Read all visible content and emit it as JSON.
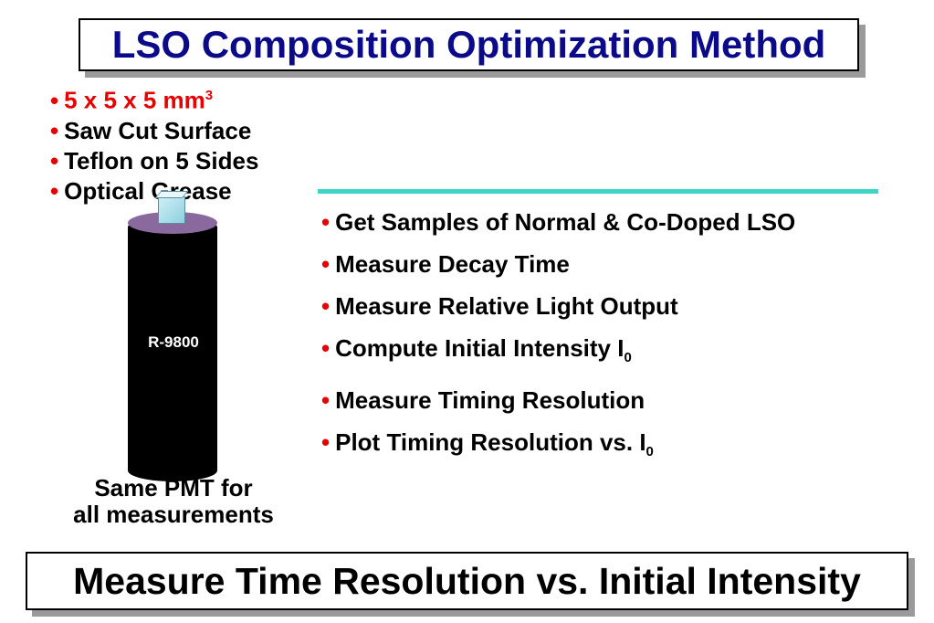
{
  "title": "LSO Composition Optimization Method",
  "specs": [
    {
      "text": "5 x 5 x 5 mm",
      "sup": "3"
    },
    {
      "text": "Saw Cut Surface"
    },
    {
      "text": "Teflon on 5 Sides"
    },
    {
      "text": "Optical Grease"
    }
  ],
  "bullet": "•",
  "pmt_label": "R-9800",
  "caption": {
    "line1": "Same PMT for",
    "line2": "all measurements"
  },
  "steps": [
    {
      "text": "Get Samples of Normal & Co-Doped LSO"
    },
    {
      "text": "Measure Decay Time"
    },
    {
      "text": "Measure Relative Light Output"
    },
    {
      "text": "Compute Initial Intensity I",
      "sub": "0"
    },
    {
      "text": "Measure Timing Resolution"
    },
    {
      "text": "Plot Timing Resolution vs. I",
      "sub": "0"
    }
  ],
  "bottom_banner": "Measure Time Resolution vs. Initial Intensity",
  "colors": {
    "title": "#0b0b8a",
    "accent_red": "#e60000",
    "divider": "#3dd6c6",
    "pmt_top": "#8a6a9e"
  }
}
